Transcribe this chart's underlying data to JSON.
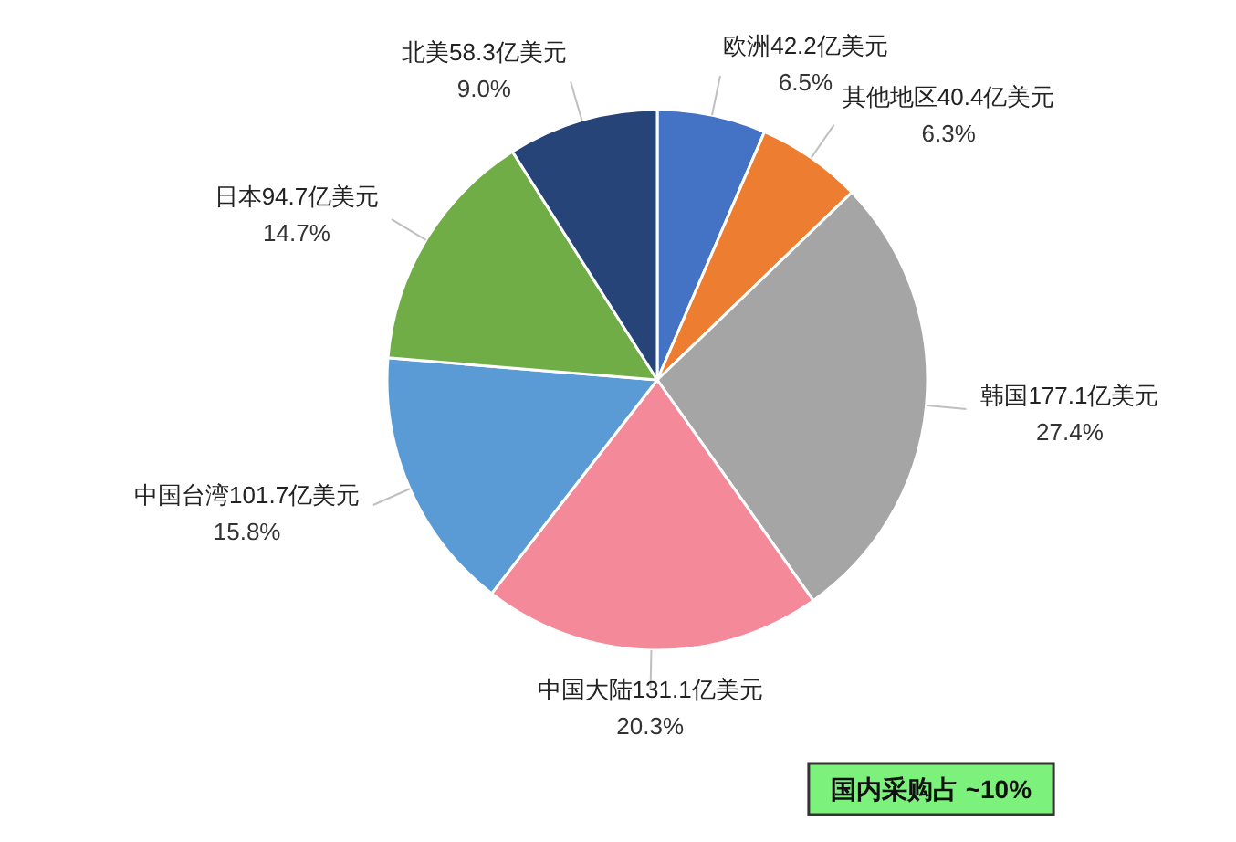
{
  "chart_data": {
    "type": "pie",
    "categories": [
      "欧洲42.2亿美元",
      "其他地区40.4亿美元",
      "韩国177.1亿美元",
      "中国大陆131.1亿美元",
      "中国台湾101.7亿美元",
      "日本94.7亿美元",
      "北美58.3亿美元"
    ],
    "values": [
      6.5,
      6.3,
      27.4,
      20.3,
      15.8,
      14.7,
      9.0
    ],
    "value_labels": [
      "6.5%",
      "6.3%",
      "27.4%",
      "20.3%",
      "15.8%",
      "14.7%",
      "9.0%"
    ],
    "colors": [
      "#4472c4",
      "#ed7d31",
      "#a5a5a5",
      "#f4899a",
      "#5b9bd5",
      "#70ad47",
      "#264478"
    ],
    "annotations": [
      "国内采购占 ~10%"
    ]
  }
}
